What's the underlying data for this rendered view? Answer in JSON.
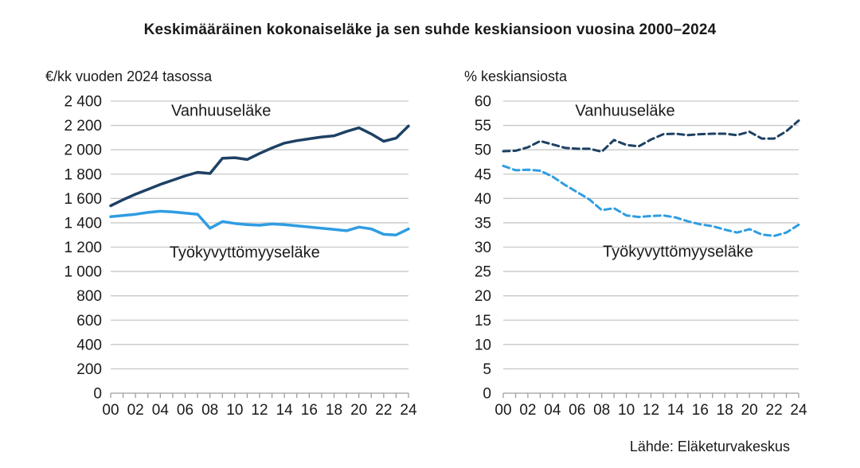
{
  "title": "Keskimääräinen kokonaiseläke ja sen suhde keskiansioon vuosina 2000–2024",
  "source": "Lähde: Eläketurvakeskus",
  "colors": {
    "dark_blue": "#1e4164",
    "light_blue": "#2f9de2",
    "grid": "#c8c8c8",
    "axis": "#9e9e9e",
    "text": "#1a1a1a"
  },
  "chart_data": [
    {
      "type": "line",
      "title": "€/kk vuoden 2024 tasossa",
      "x": [
        2000,
        2001,
        2002,
        2003,
        2004,
        2005,
        2006,
        2007,
        2008,
        2009,
        2010,
        2011,
        2012,
        2013,
        2014,
        2015,
        2016,
        2017,
        2018,
        2019,
        2020,
        2021,
        2022,
        2023,
        2024
      ],
      "xtick_labels": [
        "00",
        "02",
        "04",
        "06",
        "08",
        "10",
        "12",
        "14",
        "16",
        "18",
        "20",
        "22",
        "24"
      ],
      "ylim": [
        0,
        2400
      ],
      "ytick_step": 200,
      "ytick_labels": [
        "0",
        "200",
        "400",
        "600",
        "800",
        "1 000",
        "1 200",
        "1 400",
        "1 600",
        "1 800",
        "2 000",
        "2 200",
        "2 400"
      ],
      "grid": true,
      "legend_position": "inline",
      "series": [
        {
          "id": "vanhuuselake",
          "name": "Vanhuuseläke",
          "color_key": "dark_blue",
          "dashed": false,
          "width": 3.5,
          "values": [
            1540,
            1590,
            1635,
            1675,
            1715,
            1750,
            1785,
            1815,
            1805,
            1930,
            1935,
            1920,
            1970,
            2015,
            2055,
            2075,
            2090,
            2105,
            2115,
            2150,
            2180,
            2130,
            2070,
            2095,
            2195
          ]
        },
        {
          "id": "tyokyvyttomyyselake",
          "name": "Työkyvyttömyyseläke",
          "color_key": "light_blue",
          "dashed": false,
          "width": 3.5,
          "values": [
            1450,
            1460,
            1470,
            1485,
            1495,
            1490,
            1480,
            1470,
            1355,
            1410,
            1395,
            1385,
            1380,
            1390,
            1385,
            1375,
            1365,
            1355,
            1345,
            1335,
            1365,
            1350,
            1305,
            1300,
            1350
          ]
        }
      ],
      "inline_labels": [
        {
          "text": "Vanhuuseläke",
          "x_year": 8.9,
          "y_value": 2280
        },
        {
          "text": "Työkyvyttömyyseläke",
          "x_year": 10.8,
          "y_value": 1115
        }
      ]
    },
    {
      "type": "line",
      "title": "% keskiansiosta",
      "x": [
        2000,
        2001,
        2002,
        2003,
        2004,
        2005,
        2006,
        2007,
        2008,
        2009,
        2010,
        2011,
        2012,
        2013,
        2014,
        2015,
        2016,
        2017,
        2018,
        2019,
        2020,
        2021,
        2022,
        2023,
        2024
      ],
      "xtick_labels": [
        "00",
        "02",
        "04",
        "06",
        "08",
        "10",
        "12",
        "14",
        "16",
        "18",
        "20",
        "22",
        "24"
      ],
      "ylim": [
        0,
        60
      ],
      "ytick_step": 5,
      "ytick_labels": [
        "0",
        "5",
        "10",
        "15",
        "20",
        "25",
        "30",
        "35",
        "40",
        "45",
        "50",
        "55",
        "60"
      ],
      "grid": true,
      "legend_position": "inline",
      "series": [
        {
          "id": "vanhuuselake",
          "name": "Vanhuuseläke",
          "color_key": "dark_blue",
          "dashed": true,
          "width": 3,
          "values": [
            49.7,
            49.8,
            50.5,
            51.8,
            51.1,
            50.4,
            50.2,
            50.2,
            49.6,
            52.0,
            51.0,
            50.7,
            52.1,
            53.2,
            53.3,
            53.0,
            53.2,
            53.3,
            53.3,
            53.0,
            53.7,
            52.3,
            52.3,
            53.8,
            56.0
          ]
        },
        {
          "id": "tyokyvyttomyyselake",
          "name": "Työkyvyttömyyseläke",
          "color_key": "light_blue",
          "dashed": true,
          "width": 3,
          "values": [
            46.7,
            45.8,
            45.9,
            45.7,
            44.5,
            42.8,
            41.3,
            39.8,
            37.6,
            38.0,
            36.5,
            36.2,
            36.4,
            36.5,
            36.1,
            35.3,
            34.7,
            34.3,
            33.6,
            33.0,
            33.7,
            32.6,
            32.3,
            33.0,
            34.6
          ]
        }
      ],
      "inline_labels": [
        {
          "text": "Vanhuuseläke",
          "x_year": 9.9,
          "y_value": 57.0
        },
        {
          "text": "Työkyvyttömyyseläke",
          "x_year": 14.2,
          "y_value": 28.0
        }
      ]
    }
  ]
}
